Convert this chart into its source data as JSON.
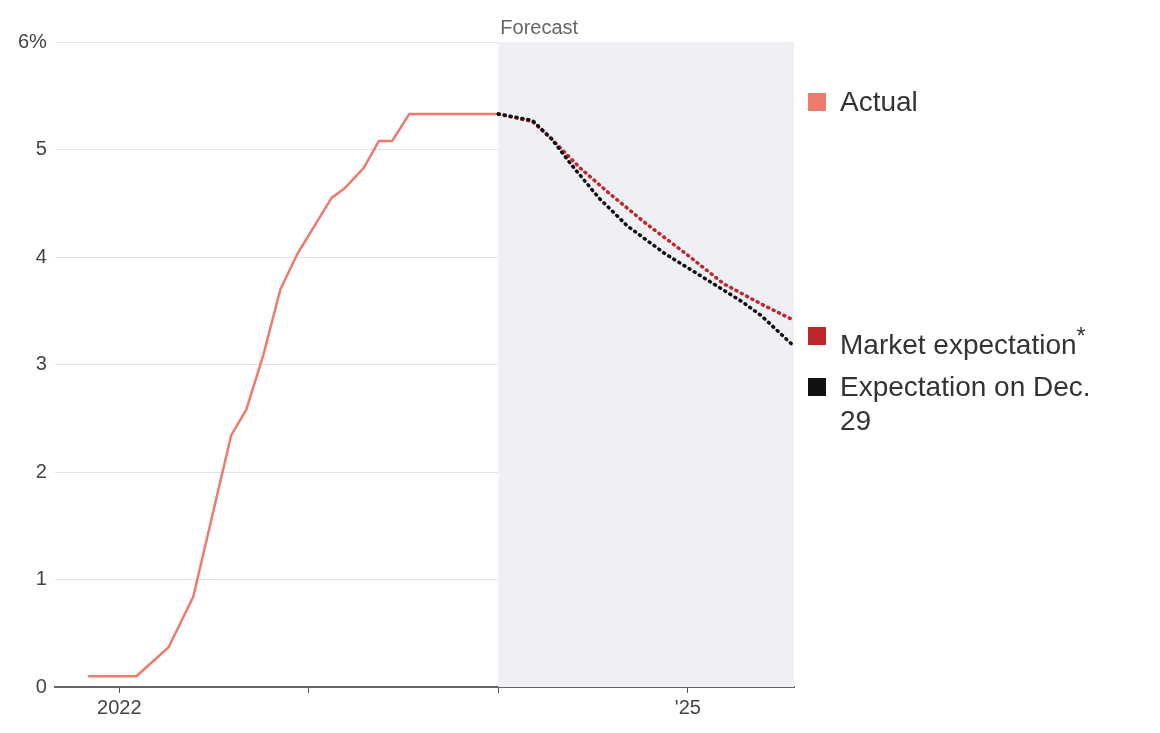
{
  "chart_data": {
    "type": "line",
    "xlim": [
      2021.66,
      2025.56
    ],
    "xticks": [
      {
        "value": 2022,
        "label": "2022"
      },
      {
        "value": 2023,
        "label": null
      },
      {
        "value": 2024,
        "label": null
      },
      {
        "value": 2025,
        "label": "'25"
      }
    ],
    "ylim": [
      0,
      6
    ],
    "yticks": [
      0,
      1,
      2,
      3,
      4,
      5,
      {
        "value": 6,
        "label": "6%"
      }
    ],
    "grid": "y",
    "legend": "right",
    "marker": "none",
    "bands": [
      {
        "axis": "x",
        "from": 2024,
        "to": 2025.56,
        "label": "Forecast",
        "color": "#eef0f4"
      }
    ],
    "series": [
      {
        "name": "Actual",
        "color": "#ee7b6b",
        "line_style": "solid",
        "x": [
          2021.84,
          2022.09,
          2022.26,
          2022.39,
          2022.59,
          2022.67,
          2022.76,
          2022.85,
          2022.94,
          2023.12,
          2023.19,
          2023.29,
          2023.37,
          2023.44,
          2023.53,
          2024.0
        ],
        "values": [
          0.1,
          0.1,
          0.37,
          0.84,
          2.34,
          2.58,
          3.09,
          3.7,
          4.03,
          4.55,
          4.64,
          4.83,
          5.08,
          5.08,
          5.33,
          5.33
        ]
      },
      {
        "name": "Market expectation$^{*}$",
        "color": "#c0272d",
        "line_style": "dotted",
        "x": [
          2024.0,
          2024.18,
          2024.28,
          2024.43,
          2024.58,
          2024.78,
          2024.99,
          2025.19,
          2025.39,
          2025.56
        ],
        "values": [
          5.33,
          5.26,
          5.1,
          4.83,
          4.6,
          4.31,
          4.03,
          3.75,
          3.56,
          3.41
        ]
      },
      {
        "name": "Expectation on Dec. 29",
        "color": "#111111",
        "line_style": "dotted",
        "x": [
          2024.0,
          2024.18,
          2024.28,
          2024.38,
          2024.53,
          2024.68,
          2024.88,
          2025.09,
          2025.29,
          2025.39,
          2025.56
        ],
        "values": [
          5.33,
          5.27,
          5.1,
          4.87,
          4.55,
          4.29,
          4.03,
          3.8,
          3.58,
          3.45,
          3.17
        ]
      }
    ]
  }
}
